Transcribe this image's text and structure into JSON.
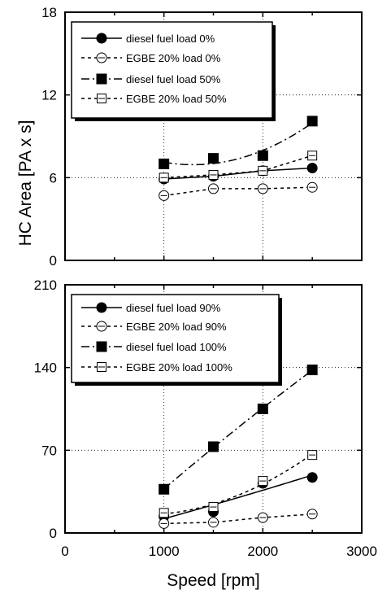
{
  "chart_data": [
    {
      "type": "scatter",
      "panel": "top",
      "xlabel": "",
      "ylabel": "HC Area [PA x s]",
      "xlim": [
        0,
        3000
      ],
      "ylim": [
        0,
        18
      ],
      "yticks": [
        "0",
        "6",
        "12",
        "18"
      ],
      "grid": "dotted",
      "legend_position": "top-left",
      "series": [
        {
          "name": "diesel  fuel   load  0%",
          "marker": "filled-circle",
          "line": "solid",
          "x": [
            1000,
            1500,
            2000,
            2500
          ],
          "y": [
            5.9,
            6.1,
            6.5,
            6.7
          ]
        },
        {
          "name": "EGBE 20%   load  0%",
          "marker": "open-circle-bar",
          "line": "dashed",
          "x": [
            1000,
            1500,
            2000,
            2500
          ],
          "y": [
            4.7,
            5.2,
            5.2,
            5.3
          ]
        },
        {
          "name": "diesel  fuel   load 50%",
          "marker": "filled-square",
          "line": "dash-dot",
          "x": [
            1000,
            1500,
            2000,
            2500
          ],
          "y": [
            7.0,
            7.4,
            7.6,
            10.1
          ]
        },
        {
          "name": "EGBE 20%   load 50%",
          "marker": "open-square-bar",
          "line": "dashed",
          "x": [
            1000,
            1500,
            2000,
            2500
          ],
          "y": [
            6.0,
            6.2,
            6.5,
            7.6
          ]
        }
      ]
    },
    {
      "type": "scatter",
      "panel": "bottom",
      "xlabel": "Speed [rpm]",
      "ylabel": "",
      "xlim": [
        0,
        3000
      ],
      "ylim": [
        0,
        210
      ],
      "xticks": [
        "0",
        "1000",
        "2000",
        "3000"
      ],
      "yticks": [
        "0",
        "70",
        "140",
        "210"
      ],
      "grid": "dotted",
      "legend_position": "top-left",
      "series": [
        {
          "name": "diesel fuel   load  90%",
          "marker": "filled-circle",
          "line": "solid",
          "x": [
            1000,
            1500,
            2000,
            2500
          ],
          "y": [
            14,
            18,
            42,
            47
          ]
        },
        {
          "name": "EGBE 20% load  90%",
          "marker": "open-circle-bar",
          "line": "dashed",
          "x": [
            1000,
            1500,
            2000,
            2500
          ],
          "y": [
            8,
            9,
            13,
            16
          ]
        },
        {
          "name": "diesel fuel   load 100%",
          "marker": "filled-square",
          "line": "dash-dot",
          "x": [
            1000,
            1500,
            2000,
            2500
          ],
          "y": [
            37,
            73,
            105,
            138
          ]
        },
        {
          "name": "EGBE 20% load 100%",
          "marker": "open-square-bar",
          "line": "dashed",
          "x": [
            1000,
            1500,
            2000,
            2500
          ],
          "y": [
            17,
            22,
            44,
            66
          ]
        }
      ]
    }
  ]
}
